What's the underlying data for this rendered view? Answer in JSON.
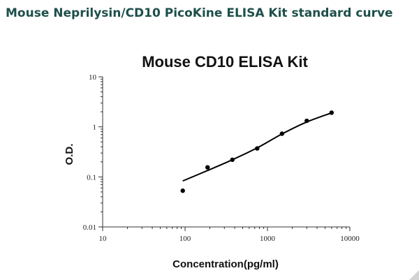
{
  "page": {
    "heading": "Mouse Neprilysin/CD10 PicoKine ELISA Kit standard curve"
  },
  "chart_data": {
    "type": "scatter",
    "title": "Mouse CD10 ELISA Kit",
    "xlabel": "Concentration(pg/ml)",
    "ylabel": "O.D.",
    "x_scale": "log",
    "y_scale": "log",
    "xlim": [
      10,
      10000
    ],
    "ylim": [
      0.01,
      10
    ],
    "x_ticks": [
      "10",
      "100",
      "1000",
      "10000"
    ],
    "y_ticks": [
      "0.01",
      "0.1",
      "1",
      "10"
    ],
    "grid": false,
    "legend": "none",
    "series": [
      {
        "points": [
          {
            "x": 93.75,
            "y": 0.053
          },
          {
            "x": 187.5,
            "y": 0.155
          },
          {
            "x": 375,
            "y": 0.22
          },
          {
            "x": 750,
            "y": 0.37
          },
          {
            "x": 1500,
            "y": 0.73
          },
          {
            "x": 3000,
            "y": 1.32
          },
          {
            "x": 6000,
            "y": 1.92
          }
        ]
      }
    ],
    "fit_curve": {
      "x": [
        93.75,
        187.5,
        375,
        750,
        1500,
        3000,
        6000
      ],
      "y": [
        0.083,
        0.134,
        0.22,
        0.38,
        0.72,
        1.25,
        1.9
      ]
    },
    "colors": {
      "points": "#000000",
      "curve": "#000000",
      "heading": "#1d4f4b"
    }
  }
}
